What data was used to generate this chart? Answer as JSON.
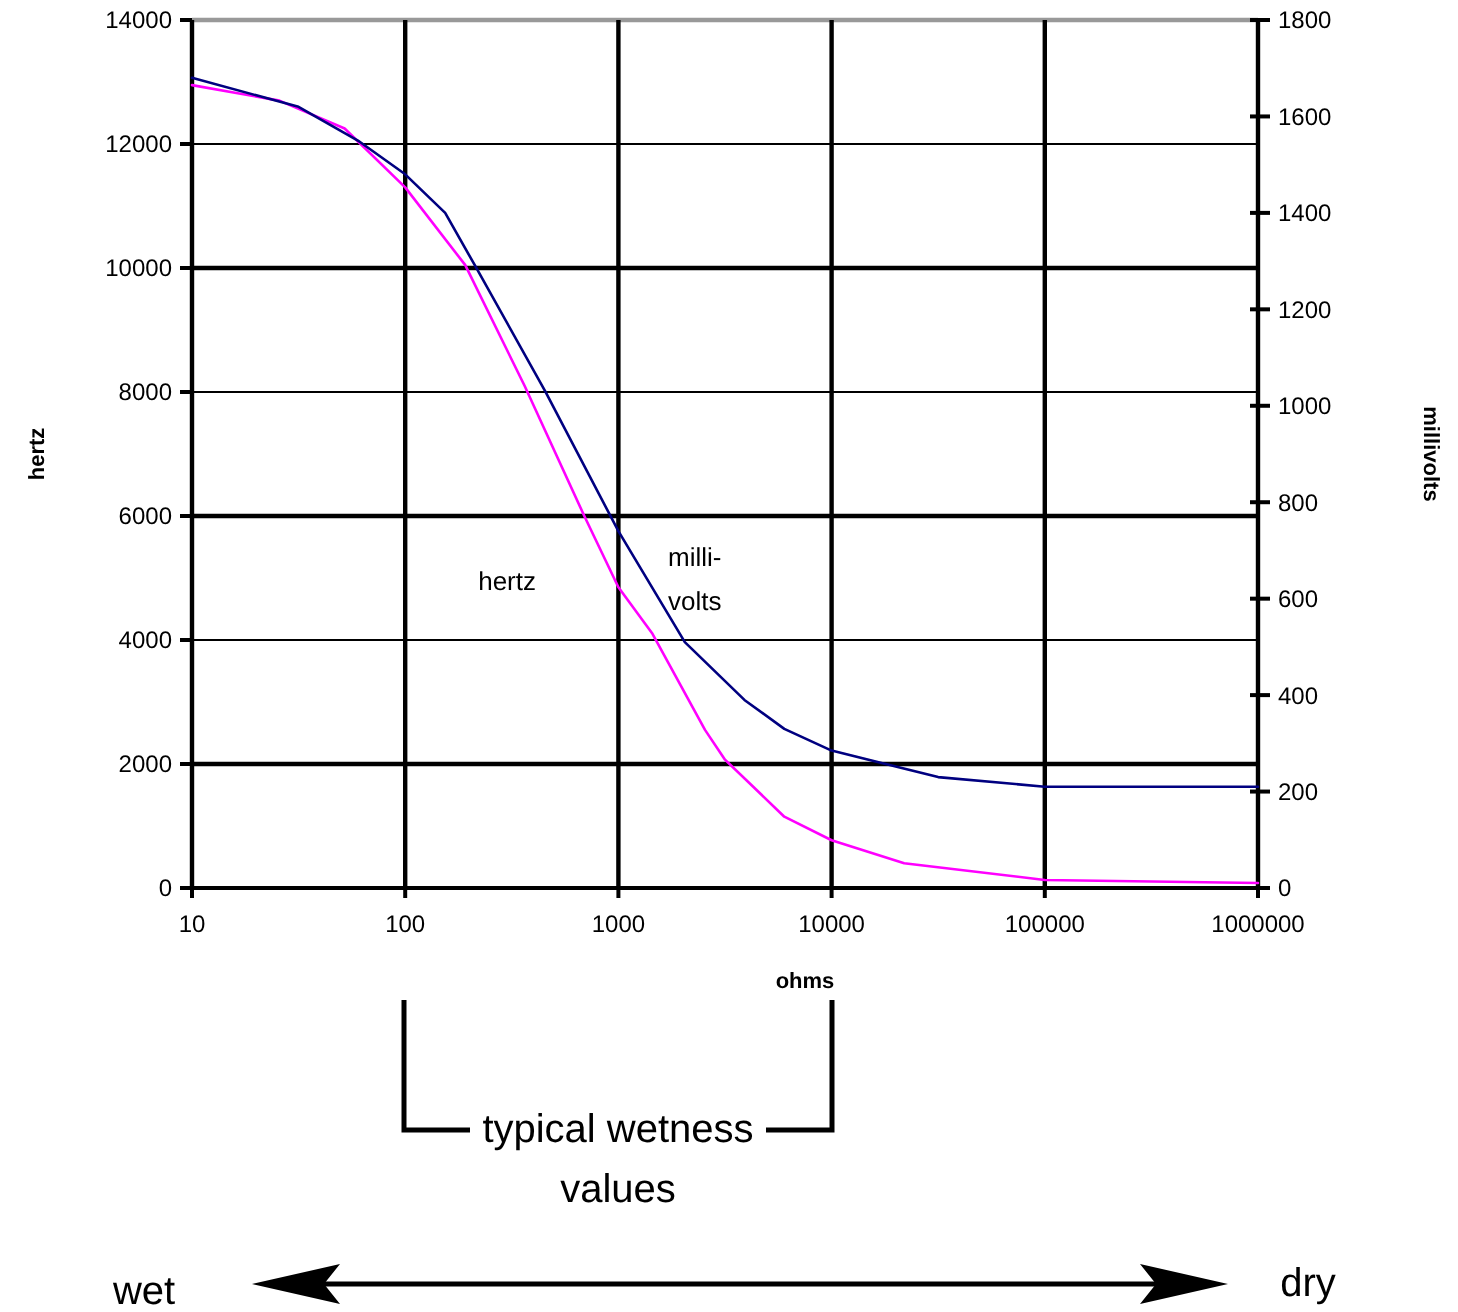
{
  "chart_data": {
    "type": "line",
    "xlabel": "ohms",
    "ylabel": "hertz",
    "y2label": "millivolts",
    "log": "x",
    "xlim": [
      10,
      1000000
    ],
    "xticks": [
      10,
      100,
      1000,
      10000,
      100000,
      1000000
    ],
    "ylim": [
      0,
      14000
    ],
    "yticks": [
      0,
      2000,
      4000,
      6000,
      8000,
      10000,
      12000,
      14000
    ],
    "y2lim": [
      0,
      1800
    ],
    "y2ticks": [
      0,
      200,
      400,
      600,
      800,
      1000,
      1200,
      1400,
      1600,
      1800
    ],
    "grid": true,
    "marker": "none",
    "line_style": "solid",
    "series": [
      {
        "name": "hertz",
        "color": "#ff00ff",
        "x": [
          10,
          25.7,
          52,
          100,
          191,
          363,
          692,
          1000,
          1445,
          2548,
          3162,
          6000,
          10000,
          21900,
          100000,
          1000000
        ],
        "values": [
          12950,
          12700,
          12250,
          11300,
          10050,
          8100,
          6000,
          4850,
          4100,
          2550,
          2070,
          1150,
          770,
          400,
          130,
          80
        ]
      },
      {
        "name": "milli-\nvolts",
        "color": "#000080",
        "axis": "y2",
        "x": [
          10,
          31.6,
          60,
          100,
          154,
          213,
          454,
          1000,
          2049,
          3900,
          6000,
          10000,
          31600,
          100000,
          1000000
        ],
        "values": [
          1680,
          1620,
          1550,
          1480,
          1400,
          1290,
          1030,
          740,
          510,
          390,
          330,
          285,
          230,
          210,
          210
        ]
      }
    ],
    "annotations": [
      "typical wetness values",
      "wet",
      "dry"
    ]
  }
}
